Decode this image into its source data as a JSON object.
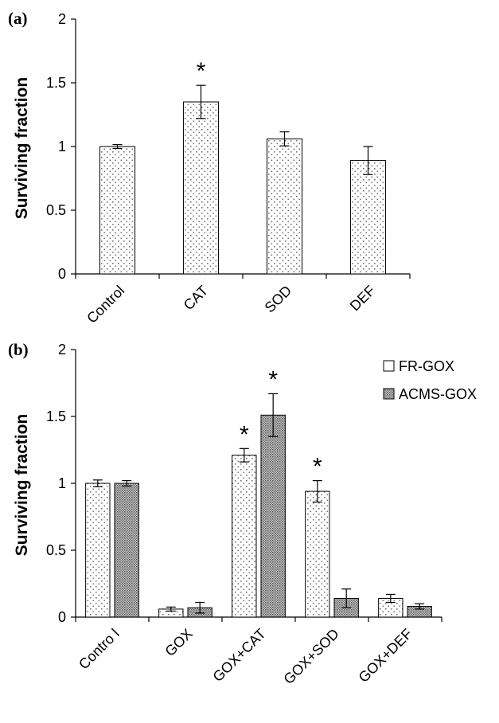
{
  "chart_data": [
    {
      "type": "bar",
      "panel": "(a)",
      "ylabel": "Surviving fraction",
      "ylim": [
        0,
        2
      ],
      "yticks": [
        "0",
        "0.5",
        "1",
        "1.5",
        "2"
      ],
      "categories": [
        "Control",
        "CAT",
        "SOD",
        "DEF"
      ],
      "series": [
        {
          "fill": "dots",
          "values": [
            1.0,
            1.35,
            1.06,
            0.89
          ],
          "errors": [
            0.015,
            0.13,
            0.055,
            0.11
          ]
        }
      ],
      "annotations": [
        {
          "category": "CAT",
          "text": "*"
        }
      ]
    },
    {
      "type": "bar",
      "panel": "(b)",
      "ylabel": "Surviving fraction",
      "ylim": [
        0,
        2
      ],
      "yticks": [
        "0",
        "0.5",
        "1",
        "1.5",
        "2"
      ],
      "categories": [
        "Contro l",
        "GOX",
        "GOX+CAT",
        "GOX+SOD",
        "GOX+DEF"
      ],
      "legend_position": "top-right",
      "series": [
        {
          "name": "FR-GOX",
          "fill": "dots",
          "values": [
            1.0,
            0.06,
            1.21,
            0.94,
            0.14
          ],
          "errors": [
            0.025,
            0.015,
            0.05,
            0.08,
            0.03
          ]
        },
        {
          "name": "ACMS-GOX",
          "fill": "dense",
          "values": [
            1.0,
            0.07,
            1.51,
            0.14,
            0.08
          ],
          "errors": [
            0.02,
            0.04,
            0.16,
            0.07,
            0.02
          ]
        }
      ],
      "annotations": [
        {
          "category": "GOX+CAT",
          "series": 0,
          "text": "*"
        },
        {
          "category": "GOX+CAT",
          "series": 1,
          "text": "*"
        },
        {
          "category": "GOX+SOD",
          "series": 0,
          "text": "*"
        }
      ]
    }
  ]
}
